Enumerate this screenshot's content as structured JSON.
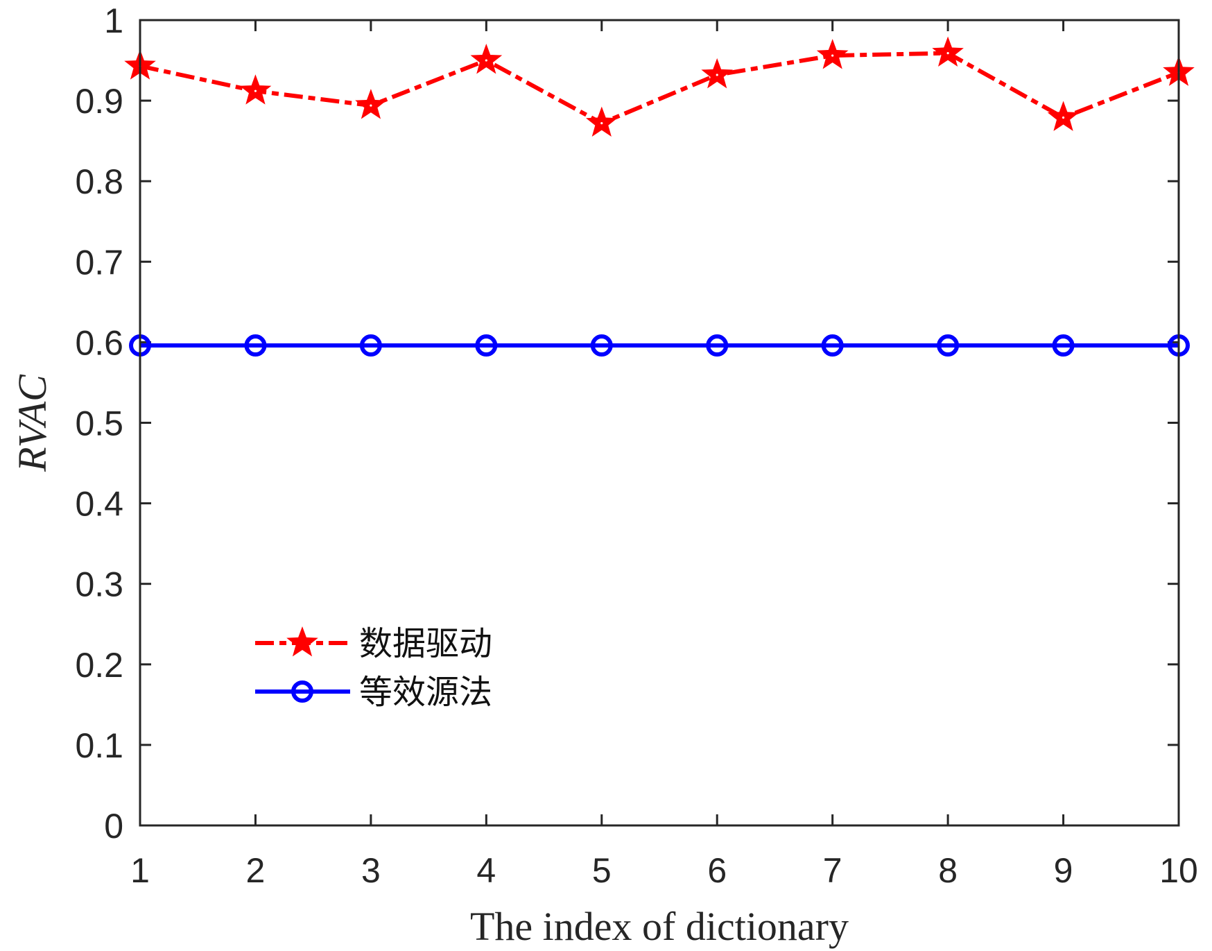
{
  "chart_data": {
    "type": "line",
    "title": "",
    "xlabel": "The index of dictionary",
    "ylabel": "RVAC",
    "x": [
      1,
      2,
      3,
      4,
      5,
      6,
      7,
      8,
      9,
      10
    ],
    "xlim": [
      1,
      10
    ],
    "ylim": [
      0,
      1
    ],
    "xticks": [
      "1",
      "2",
      "3",
      "4",
      "5",
      "6",
      "7",
      "8",
      "9",
      "10"
    ],
    "yticks": [
      "0",
      "0.1",
      "0.2",
      "0.3",
      "0.4",
      "0.5",
      "0.6",
      "0.7",
      "0.8",
      "0.9",
      "1"
    ],
    "grid": false,
    "legend_position": "lower-left (inside)",
    "series": [
      {
        "name": "数据驱动",
        "color": "#ff0000",
        "line_style": "dash-dot",
        "marker": "pentagram",
        "values": [
          0.943,
          0.912,
          0.894,
          0.95,
          0.872,
          0.932,
          0.956,
          0.959,
          0.879,
          0.935
        ]
      },
      {
        "name": "等效源法",
        "color": "#0000ff",
        "line_style": "solid",
        "marker": "circle",
        "values": [
          0.596,
          0.596,
          0.596,
          0.596,
          0.596,
          0.596,
          0.596,
          0.596,
          0.596,
          0.596
        ]
      }
    ]
  },
  "legend": {
    "items": [
      {
        "label": "数据驱动"
      },
      {
        "label": "等效源法"
      }
    ]
  },
  "axes": {
    "xlabel": "The index of dictionary",
    "ylabel": "RVAC",
    "axis_color": "#262626"
  }
}
